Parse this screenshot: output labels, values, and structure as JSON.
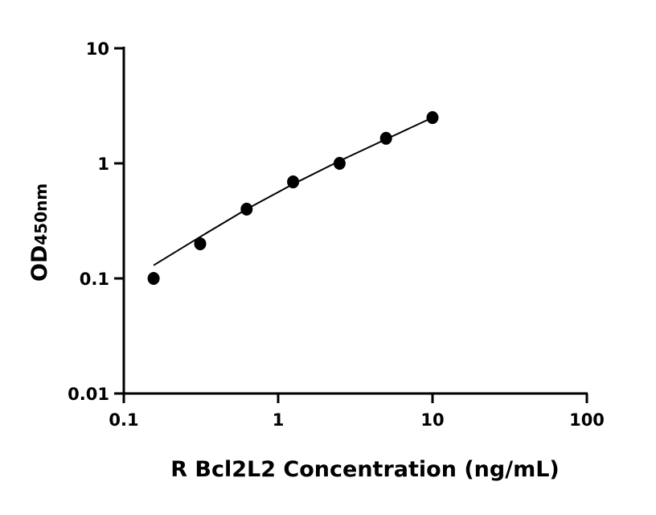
{
  "chart_data": {
    "type": "scatter",
    "xlabel": "R Bcl2L2 Concentration (ng/mL)",
    "ylabel": "OD",
    "ylabel_subscript": "450nm",
    "xscale": "log",
    "yscale": "log",
    "xlim": [
      0.1,
      100
    ],
    "ylim": [
      0.01,
      10
    ],
    "xticks": [
      "0.1",
      "1",
      "10",
      "100"
    ],
    "yticks": [
      "0.01",
      "0.1",
      "1",
      "10"
    ],
    "grid": false,
    "points": {
      "x": [
        0.156,
        0.3125,
        0.625,
        1.25,
        2.5,
        5,
        10
      ],
      "y": [
        0.1,
        0.2,
        0.4,
        0.69,
        1.0,
        1.65,
        2.5
      ]
    },
    "fit_curve": {
      "x": [
        0.156,
        0.3125,
        0.625,
        1.25,
        2.5,
        5,
        10
      ],
      "y": [
        0.13,
        0.23,
        0.4,
        0.66,
        1.05,
        1.62,
        2.5
      ]
    },
    "colors": {
      "points": "#000000",
      "curve": "#000000"
    }
  }
}
